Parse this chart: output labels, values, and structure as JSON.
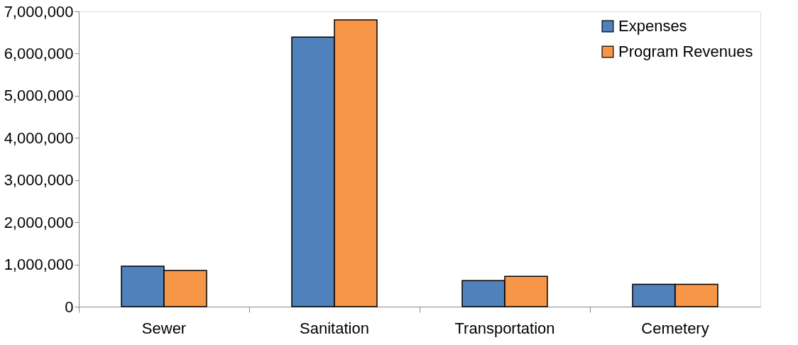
{
  "chart_data": {
    "type": "bar",
    "categories": [
      "Sewer",
      "Sanitation",
      "Transportation",
      "Cemetery"
    ],
    "series": [
      {
        "name": "Expenses",
        "color": "#4f81bd",
        "values": [
          960000,
          6390000,
          620000,
          530000
        ]
      },
      {
        "name": "Program Revenues",
        "color": "#f79646",
        "values": [
          860000,
          6800000,
          720000,
          530000
        ]
      }
    ],
    "ylim": [
      0,
      7000000
    ],
    "yticks": [
      0,
      {
        "value": 1000000,
        "label": "1,000,000"
      },
      {
        "value": 2000000,
        "label": "2,000,000"
      },
      {
        "value": 3000000,
        "label": "3,000,000"
      },
      {
        "value": 4000000,
        "label": "4,000,000"
      },
      {
        "value": 5000000,
        "label": "5,000,000"
      },
      {
        "value": 6000000,
        "label": "6,000,000"
      },
      {
        "value": 7000000,
        "label": "7,000,000"
      }
    ],
    "grid": false,
    "legend": "top right"
  }
}
